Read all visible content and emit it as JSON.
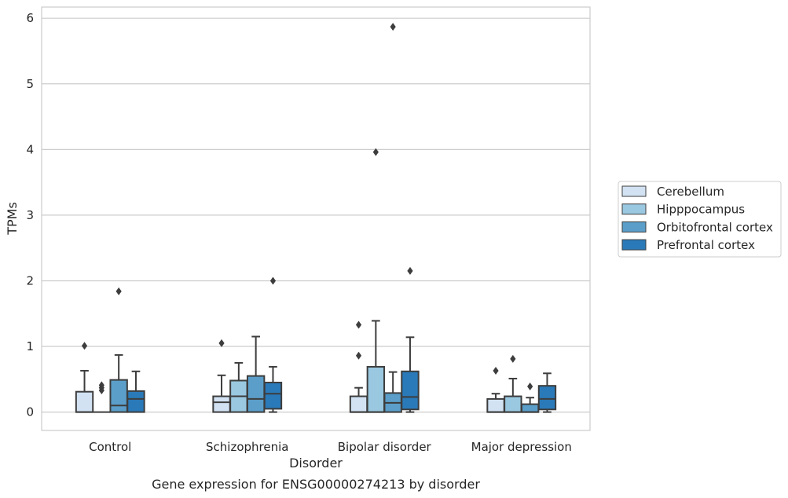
{
  "caption": "Gene expression for ENSG00000274213 by disorder",
  "chart_data": {
    "type": "box",
    "xlabel": "Disorder",
    "ylabel": "TPMs",
    "ylim": [
      -0.28,
      6.17
    ],
    "yticks": [
      0,
      1,
      2,
      3,
      4,
      5,
      6
    ],
    "ytick_labels": [
      "0",
      "1",
      "2",
      "3",
      "4",
      "5",
      "6"
    ],
    "grid": "horizontal",
    "legend_position": "right",
    "categories": [
      "Control",
      "Schizophrenia",
      "Bipolar disorder",
      "Major depression"
    ],
    "series": [
      {
        "name": "Cerebellum",
        "color": "#d2e2f2",
        "boxes": [
          {
            "whisker_low": 0.0,
            "q1": 0.0,
            "median": 0.0,
            "q3": 0.31,
            "whisker_high": 0.63,
            "fliers": [
              1.01
            ]
          },
          {
            "whisker_low": 0.0,
            "q1": 0.0,
            "median": 0.15,
            "q3": 0.24,
            "whisker_high": 0.56,
            "fliers": [
              1.05
            ]
          },
          {
            "whisker_low": 0.0,
            "q1": 0.0,
            "median": 0.0,
            "q3": 0.24,
            "whisker_high": 0.37,
            "fliers": [
              0.86,
              1.33
            ]
          },
          {
            "whisker_low": 0.0,
            "q1": 0.0,
            "median": 0.0,
            "q3": 0.2,
            "whisker_high": 0.28,
            "fliers": [
              0.63
            ]
          }
        ]
      },
      {
        "name": "Hipppocampus",
        "color": "#9ac8e0",
        "boxes": [
          {
            "whisker_low": 0.0,
            "q1": 0.0,
            "median": 0.0,
            "q3": 0.0,
            "whisker_high": 0.0,
            "fliers": [
              0.33,
              0.37,
              0.41
            ]
          },
          {
            "whisker_low": 0.0,
            "q1": 0.0,
            "median": 0.24,
            "q3": 0.48,
            "whisker_high": 0.75,
            "fliers": []
          },
          {
            "whisker_low": 0.0,
            "q1": 0.0,
            "median": 0.0,
            "q3": 0.69,
            "whisker_high": 1.39,
            "fliers": [
              3.96
            ]
          },
          {
            "whisker_low": 0.0,
            "q1": 0.0,
            "median": 0.0,
            "q3": 0.24,
            "whisker_high": 0.51,
            "fliers": [
              0.81
            ]
          }
        ]
      },
      {
        "name": "Orbitofrontal cortex",
        "color": "#5b9ec9",
        "boxes": [
          {
            "whisker_low": 0.0,
            "q1": 0.0,
            "median": 0.1,
            "q3": 0.49,
            "whisker_high": 0.87,
            "fliers": [
              1.84
            ]
          },
          {
            "whisker_low": 0.0,
            "q1": 0.0,
            "median": 0.2,
            "q3": 0.55,
            "whisker_high": 1.15,
            "fliers": []
          },
          {
            "whisker_low": 0.0,
            "q1": 0.0,
            "median": 0.14,
            "q3": 0.29,
            "whisker_high": 0.61,
            "fliers": [
              5.87
            ]
          },
          {
            "whisker_low": 0.0,
            "q1": 0.0,
            "median": 0.0,
            "q3": 0.12,
            "whisker_high": 0.22,
            "fliers": [
              0.39
            ]
          }
        ]
      },
      {
        "name": "Prefrontal cortex",
        "color": "#2a7ab9",
        "boxes": [
          {
            "whisker_low": 0.0,
            "q1": 0.0,
            "median": 0.2,
            "q3": 0.32,
            "whisker_high": 0.62,
            "fliers": []
          },
          {
            "whisker_low": 0.0,
            "q1": 0.05,
            "median": 0.28,
            "q3": 0.45,
            "whisker_high": 0.69,
            "fliers": [
              2.0
            ]
          },
          {
            "whisker_low": 0.0,
            "q1": 0.04,
            "median": 0.23,
            "q3": 0.62,
            "whisker_high": 1.14,
            "fliers": [
              2.15
            ]
          },
          {
            "whisker_low": 0.0,
            "q1": 0.04,
            "median": 0.2,
            "q3": 0.4,
            "whisker_high": 0.59,
            "fliers": []
          }
        ]
      }
    ]
  }
}
